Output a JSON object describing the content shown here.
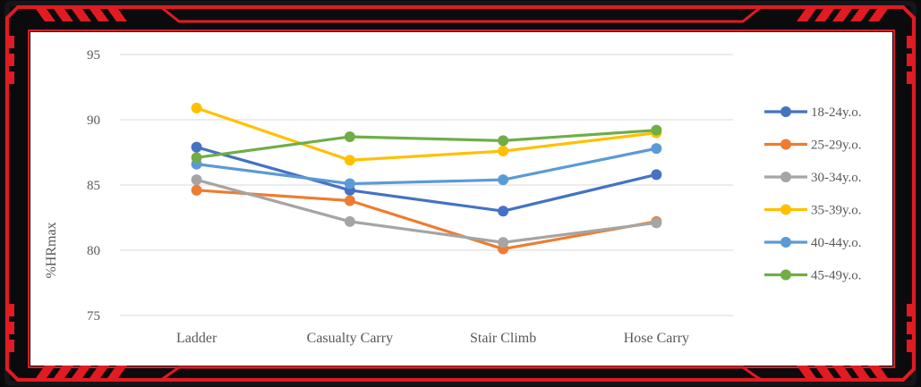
{
  "colors": {
    "frame_red": "#e01b22",
    "frame_dark": "#15161a",
    "background": "#0b0b0d",
    "grid": "#d9d9d9",
    "axis_text": "#595959"
  },
  "chart_data": {
    "type": "line",
    "title": "",
    "xlabel": "",
    "ylabel": "%HRmax",
    "ylim": [
      75,
      95
    ],
    "yticks": [
      "95",
      "90",
      "85",
      "80",
      "75"
    ],
    "ytick_values": [
      95,
      90,
      85,
      80,
      75
    ],
    "grid": true,
    "legend_position": "right",
    "categories": [
      "Ladder",
      "Casualty Carry",
      "Stair Climb",
      "Hose Carry"
    ],
    "series": [
      {
        "name": "18-24y.o.",
        "color": "#4472c4",
        "values": [
          87.9,
          84.6,
          83.0,
          85.8
        ]
      },
      {
        "name": "25-29y.o.",
        "color": "#ed7d31",
        "values": [
          84.6,
          83.8,
          80.1,
          82.2
        ]
      },
      {
        "name": "30-34y.o.",
        "color": "#a5a5a5",
        "values": [
          85.4,
          82.2,
          80.6,
          82.1
        ]
      },
      {
        "name": "35-39y.o.",
        "color": "#ffc000",
        "values": [
          90.9,
          86.9,
          87.6,
          89.0
        ]
      },
      {
        "name": "40-44y.o.",
        "color": "#5b9bd5",
        "values": [
          86.6,
          85.1,
          85.4,
          87.8
        ]
      },
      {
        "name": "45-49y.o.",
        "color": "#70ad47",
        "values": [
          87.1,
          88.7,
          88.4,
          89.2
        ]
      }
    ]
  }
}
